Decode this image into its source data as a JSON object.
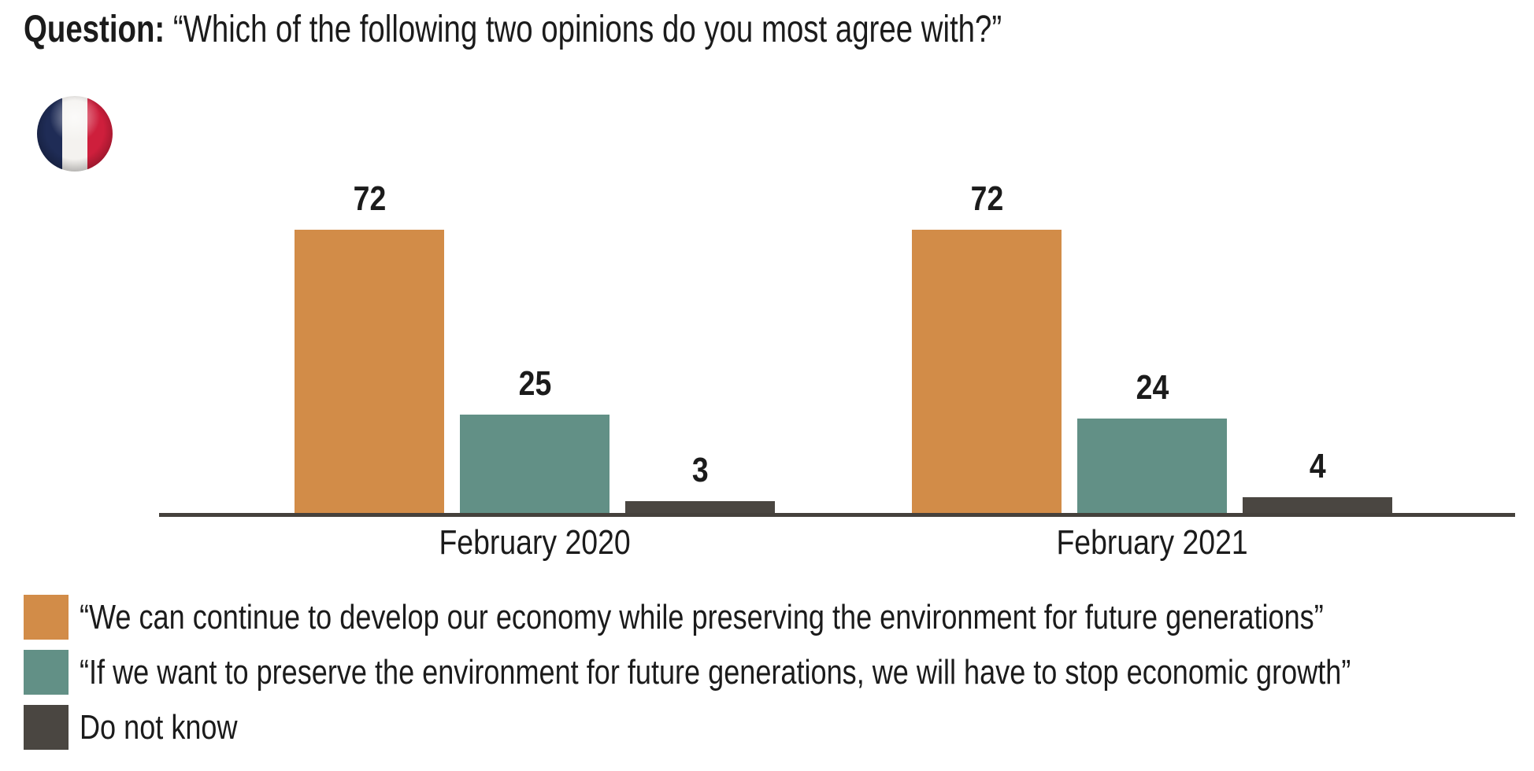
{
  "title": {
    "label": "Question:",
    "question": "“Which of the following two opinions do you most agree with?”"
  },
  "flag": {
    "country": "France",
    "colors": {
      "blue": "#1f2c56",
      "white": "#f4f2ef",
      "red": "#ce1f3c"
    }
  },
  "chart_data": {
    "type": "bar",
    "categories": [
      "February 2020",
      "February 2021"
    ],
    "series": [
      {
        "name": "“We can continue to develop our economy while preserving the environment for future generations”",
        "color": "#d28c48",
        "values": [
          72,
          72
        ]
      },
      {
        "name": "“If we want to preserve the environment for future generations, we will have to stop economic growth”",
        "color": "#629086",
        "values": [
          25,
          24
        ]
      },
      {
        "name": "Do not know",
        "color": "#4a4641",
        "values": [
          3,
          4
        ]
      }
    ],
    "ylim": [
      0,
      100
    ],
    "grid": false,
    "value_labels": true,
    "legend_position": "bottom",
    "axis_color": "#45413c"
  }
}
